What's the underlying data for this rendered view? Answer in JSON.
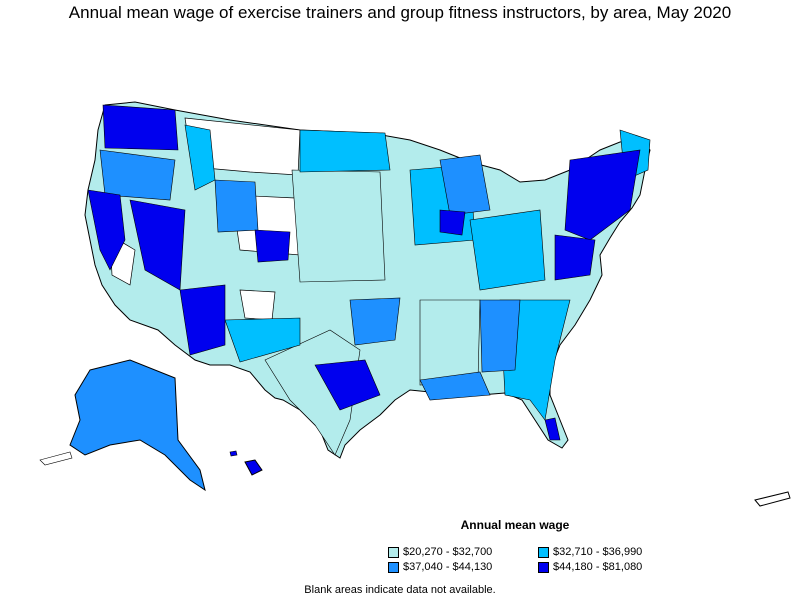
{
  "title": "Annual mean wage of exercise trainers and group fitness instructors, by area, May 2020",
  "legend": {
    "title": "Annual mean wage",
    "items": [
      {
        "label": "$20,270 - $32,700",
        "color": "#b3ecec"
      },
      {
        "label": "$32,710 - $36,990",
        "color": "#00bfff"
      },
      {
        "label": "$37,040 - $44,130",
        "color": "#1e90ff"
      },
      {
        "label": "$44,180 - $81,080",
        "color": "#0000ee"
      }
    ]
  },
  "footnote": "Blank areas indicate data not available.",
  "colors": {
    "outline": "#000000",
    "no_data": "#ffffff"
  }
}
